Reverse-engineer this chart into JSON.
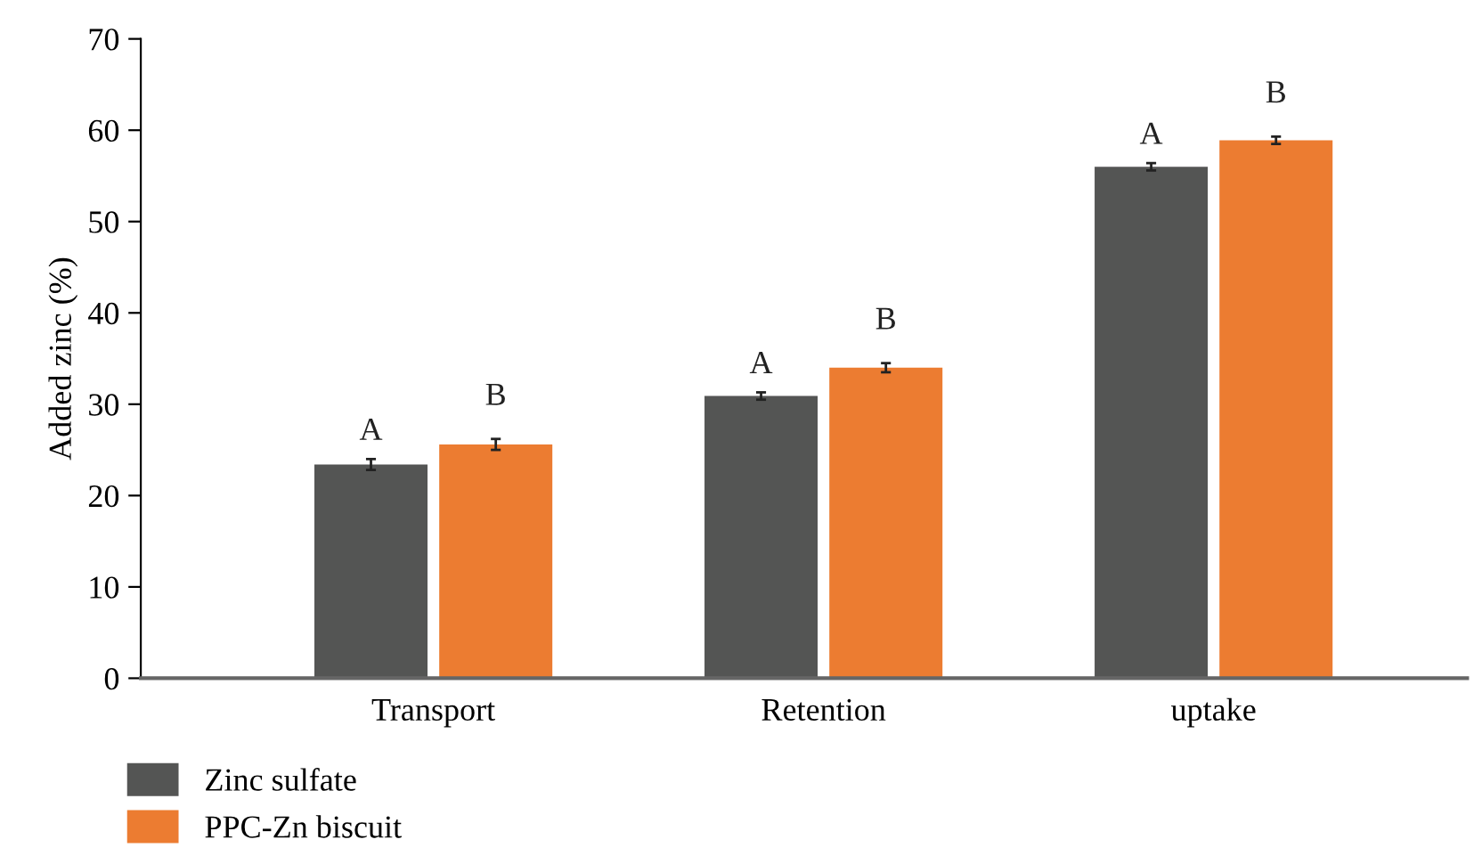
{
  "chart_data": {
    "type": "bar",
    "ylabel": "Added zinc (%)",
    "categories": [
      "Transport",
      "Retention",
      "uptake"
    ],
    "series": [
      {
        "name": "Zinc sulfate",
        "color": "#545554",
        "values": [
          23.4,
          30.9,
          56.0
        ],
        "errors": [
          0.6,
          0.4,
          0.4
        ],
        "value_labels": [
          "A",
          "A",
          "A"
        ]
      },
      {
        "name": "PPC-Zn biscuit",
        "color": "#ec7c31",
        "values": [
          25.6,
          34.0,
          58.9
        ],
        "errors": [
          0.6,
          0.5,
          0.4
        ],
        "value_labels": [
          "B",
          "B",
          "B"
        ]
      }
    ],
    "ylim": [
      0,
      70
    ],
    "yticks": [
      0,
      10,
      20,
      30,
      40,
      50,
      60,
      70
    ],
    "grid": false,
    "legend": "bottom left"
  }
}
